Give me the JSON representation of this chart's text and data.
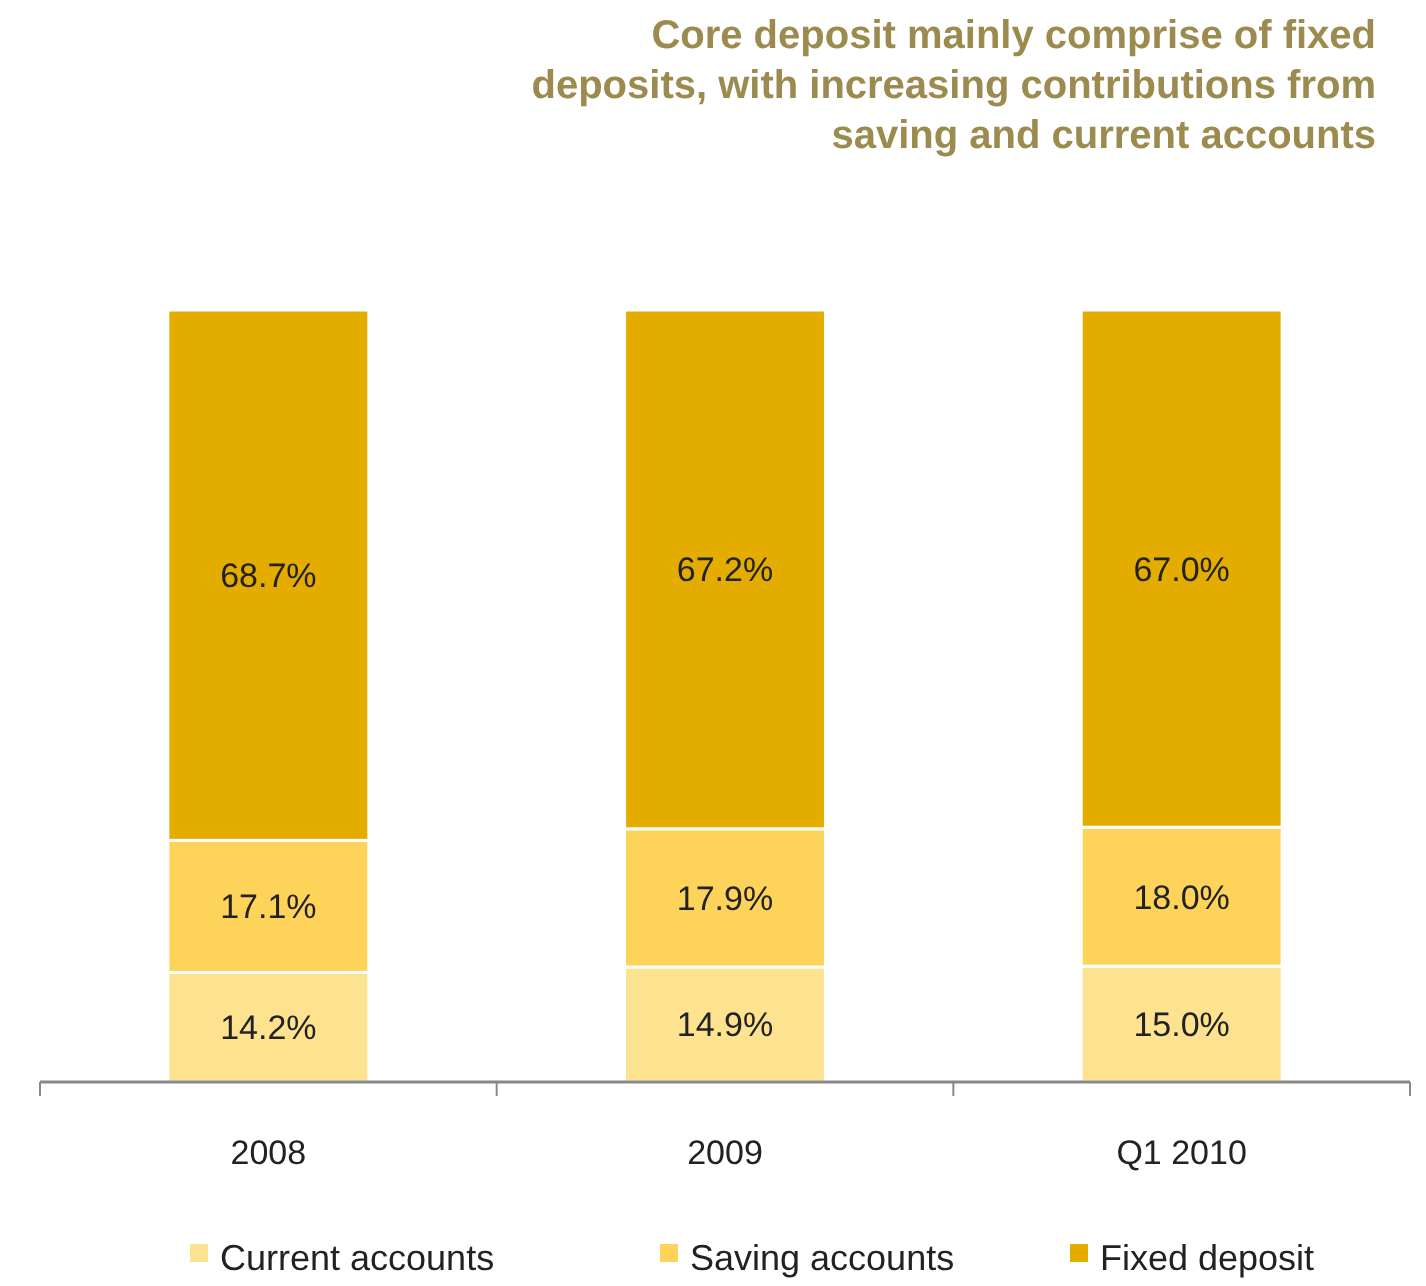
{
  "chart_data": {
    "type": "bar",
    "title": "Core deposit mainly comprise of fixed deposits, with increasing contributions from saving and current accounts",
    "categories": [
      "2008",
      "2009",
      "Q1 2010"
    ],
    "stacked": true,
    "legend": "bottom",
    "series": [
      {
        "name": "Current accounts",
        "color": "#fde28f",
        "values": [
          14.2,
          14.9,
          15.0
        ],
        "value_labels": [
          "14.2%",
          "14.9%",
          "15.0%"
        ]
      },
      {
        "name": "Saving accounts",
        "color": "#fdd35a",
        "values": [
          17.1,
          17.9,
          18.0
        ],
        "value_labels": [
          "17.1%",
          "17.9%",
          "18.0%"
        ]
      },
      {
        "name": "Fixed deposit",
        "color": "#e5ac00",
        "values": [
          68.7,
          67.2,
          67.0
        ],
        "value_labels": [
          "68.7%",
          "67.2%",
          "67.0%"
        ]
      }
    ]
  }
}
